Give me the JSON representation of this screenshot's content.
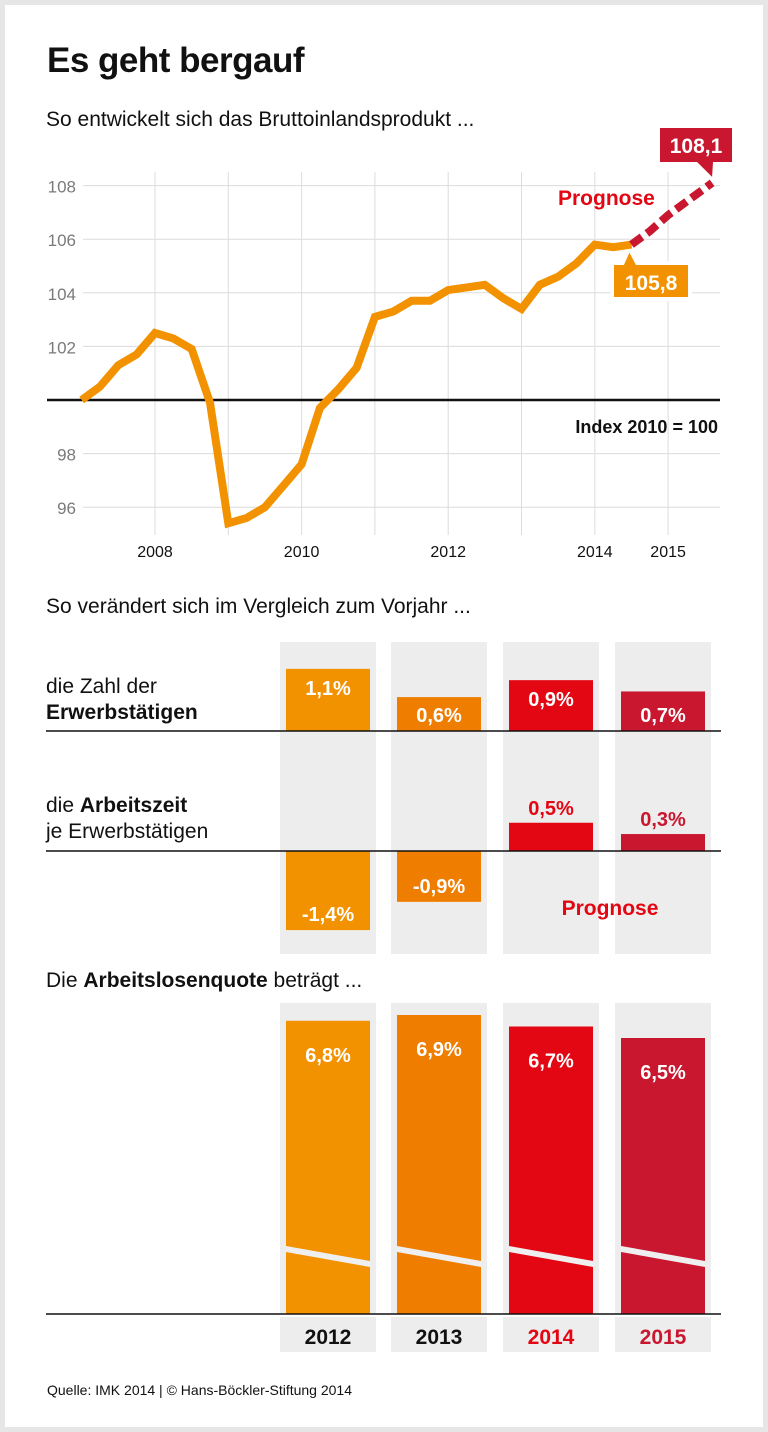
{
  "title": "Es geht bergauf",
  "sections": {
    "gdp_subtitle": "So entwickelt sich das Bruttoinlandsprodukt ...",
    "change_subtitle": "So verändert sich im Vergleich zum Vorjahr ...",
    "unemployment_subtitle": {
      "pre": "Die ",
      "bold": "Arbeitslosenquote",
      "post": " beträgt ..."
    }
  },
  "rows": {
    "employed": {
      "line1": "die Zahl der",
      "line2_bold": "Erwerbstätigen"
    },
    "hours": {
      "line1_pre": "die ",
      "line1_bold": "Arbeitszeit",
      "line2": "je Erwerbstätigen"
    }
  },
  "colors": {
    "orange_2012": "#F39200",
    "orange_2013": "#EF7D00",
    "red_2014": "#E30613",
    "crimson_2015": "#C8172F",
    "column_bg": "#EDEDED",
    "gdp_line": "#F39200",
    "forecast": "#C8172F",
    "prognose_text": "#E30613"
  },
  "chart_data": [
    {
      "type": "line",
      "title": "So entwickelt sich das Bruttoinlandsprodukt ...",
      "ylabel": "Index 2010 = 100",
      "ylim": [
        95,
        108.6
      ],
      "yticks": [
        96,
        98,
        102,
        104,
        106,
        108
      ],
      "baseline": 100,
      "baseline_label": "Index 2010 = 100",
      "xlim": [
        2007,
        2015.7
      ],
      "xticks": [
        {
          "value": 2008,
          "label": "2008"
        },
        {
          "value": 2010,
          "label": "2010"
        },
        {
          "value": 2012,
          "label": "2012"
        },
        {
          "value": 2014,
          "label": "2014"
        },
        {
          "value": 2015,
          "label": "2015"
        }
      ],
      "xgrid": [
        2008,
        2009,
        2010,
        2011,
        2012,
        2013,
        2014,
        2015
      ],
      "grid": true,
      "series": [
        {
          "name": "Bruttoinlandsprodukt",
          "x": [
            2007.0,
            2007.25,
            2007.5,
            2007.75,
            2008.0,
            2008.25,
            2008.5,
            2008.75,
            2009.0,
            2009.25,
            2009.5,
            2009.75,
            2010.0,
            2010.25,
            2010.5,
            2010.75,
            2011.0,
            2011.25,
            2011.5,
            2011.75,
            2012.0,
            2012.25,
            2012.5,
            2012.75,
            2013.0,
            2013.25,
            2013.5,
            2013.75,
            2014.0,
            2014.25,
            2014.5
          ],
          "values": [
            100.0,
            100.5,
            101.3,
            101.7,
            102.5,
            102.3,
            101.9,
            99.9,
            95.4,
            95.6,
            96.0,
            96.8,
            97.6,
            99.7,
            100.4,
            101.2,
            103.1,
            103.3,
            103.7,
            103.7,
            104.1,
            104.2,
            104.3,
            103.8,
            103.4,
            104.3,
            104.6,
            105.1,
            105.8,
            105.7,
            105.8
          ]
        },
        {
          "name": "Prognose",
          "style": "dashed",
          "x": [
            2014.5,
            2014.75,
            2015.0,
            2015.25,
            2015.6
          ],
          "values": [
            105.8,
            106.3,
            106.9,
            107.4,
            108.1
          ]
        }
      ],
      "annotations": [
        {
          "text": "Prognose",
          "color": "#E30613"
        },
        {
          "text": "105,8",
          "at": 105.8,
          "bg": "#F39200"
        },
        {
          "text": "108,1",
          "at": 108.1,
          "bg": "#C8172F"
        }
      ]
    },
    {
      "type": "bar",
      "title": "So verändert sich im Vergleich zum Vorjahr ...",
      "categories": [
        "2012",
        "2013",
        "2014",
        "2015"
      ],
      "prognose_label": "Prognose",
      "series": [
        {
          "name": "die Zahl der Erwerbstätigen",
          "values": [
            1.1,
            0.6,
            0.9,
            0.7
          ],
          "labels": [
            "1,1%",
            "0,6%",
            "0,9%",
            "0,7%"
          ]
        },
        {
          "name": "die Arbeitszeit je Erwerbstätigen",
          "values": [
            -1.4,
            -0.9,
            0.5,
            0.3
          ],
          "labels": [
            "-1,4%",
            "-0,9%",
            "0,5%",
            "0,3%"
          ]
        }
      ]
    },
    {
      "type": "bar",
      "title": "Die Arbeitslosenquote beträgt ...",
      "categories": [
        "2012",
        "2013",
        "2014",
        "2015"
      ],
      "values": [
        6.8,
        6.9,
        6.7,
        6.5
      ],
      "labels": [
        "6,8%",
        "6,9%",
        "6,7%",
        "6,5%"
      ],
      "axis_break": true
    }
  ],
  "source": "Quelle: IMK 2014 | © Hans-Böckler-Stiftung 2014"
}
